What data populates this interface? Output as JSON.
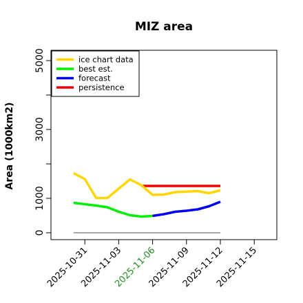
{
  "chart_data": {
    "type": "line",
    "title": "MIZ area",
    "xlabel": "",
    "ylabel": "Area (1000km2)",
    "x_ticks": [
      "2025-10-31",
      "2025-11-03",
      "2025-11-06",
      "2025-11-09",
      "2025-11-12",
      "2025-11-15"
    ],
    "x_tick_colors": [
      "#000000",
      "#000000",
      "#228B22",
      "#000000",
      "#000000",
      "#000000"
    ],
    "y_ticks": [
      0,
      1000,
      3000,
      5000
    ],
    "xlim": [
      "2025-10-28",
      "2025-11-17"
    ],
    "ylim": [
      -200,
      5300
    ],
    "grid": false,
    "legend_position": "top-left",
    "series": [
      {
        "name": "ice chart data",
        "color": "#FFD700",
        "x": [
          "2025-10-30",
          "2025-10-31",
          "2025-11-01",
          "2025-11-02",
          "2025-11-04",
          "2025-11-05",
          "2025-11-06",
          "2025-11-07",
          "2025-11-08",
          "2025-11-10",
          "2025-11-11",
          "2025-11-12"
        ],
        "y": [
          1730,
          1560,
          1010,
          1010,
          1550,
          1380,
          1100,
          1110,
          1180,
          1210,
          1150,
          1230
        ]
      },
      {
        "name": "best est.",
        "color": "#00EE00",
        "x": [
          "2025-10-30",
          "2025-11-01",
          "2025-11-02",
          "2025-11-03",
          "2025-11-04",
          "2025-11-05",
          "2025-11-06"
        ],
        "y": [
          870,
          790,
          740,
          610,
          510,
          470,
          490
        ]
      },
      {
        "name": "forecast",
        "color": "#0000EE",
        "x": [
          "2025-11-06",
          "2025-11-07",
          "2025-11-08",
          "2025-11-09",
          "2025-11-10",
          "2025-11-11",
          "2025-11-12"
        ],
        "y": [
          490,
          540,
          610,
          640,
          680,
          770,
          900
        ]
      },
      {
        "name": "persistence",
        "color": "#EE0000",
        "x": [
          "2025-11-05",
          "2025-11-12"
        ],
        "y": [
          1360,
          1360
        ]
      },
      {
        "name": "",
        "color": "#888888",
        "x": [
          "2025-10-30",
          "2025-11-12"
        ],
        "y": [
          0,
          0
        ]
      }
    ]
  }
}
